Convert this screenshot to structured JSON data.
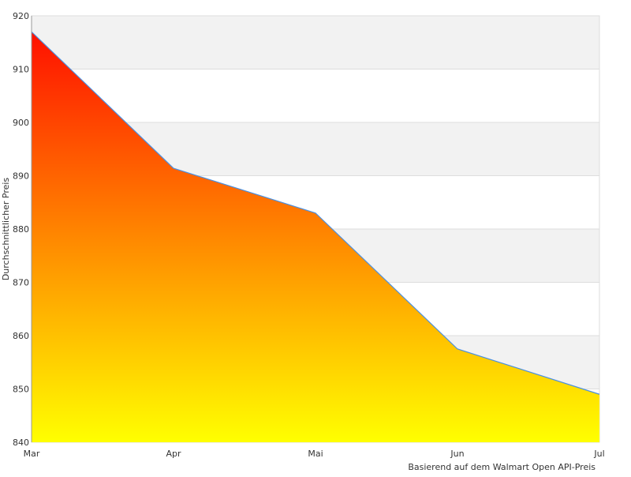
{
  "chart_data": {
    "type": "area",
    "title": "",
    "xlabel": "",
    "ylabel": "Durchschnittlicher Preis",
    "footer": "Basierend auf dem Walmart Open API-Preis",
    "categories": [
      "Mar",
      "Apr",
      "Mai",
      "Jun",
      "Jul"
    ],
    "series": [
      {
        "name": "Durchschnittlicher Preis",
        "values": [
          917,
          891.4,
          883,
          857.5,
          849
        ]
      }
    ],
    "ylim": [
      840,
      920
    ],
    "yticks": [
      840,
      850,
      860,
      870,
      880,
      890,
      900,
      910,
      920
    ],
    "grid": true,
    "colors": {
      "line": "#4a90e2",
      "fill_top": "#ff1000",
      "fill_bottom": "#ffff00",
      "band": "#f2f2f2",
      "grid": "#dddddd"
    }
  }
}
